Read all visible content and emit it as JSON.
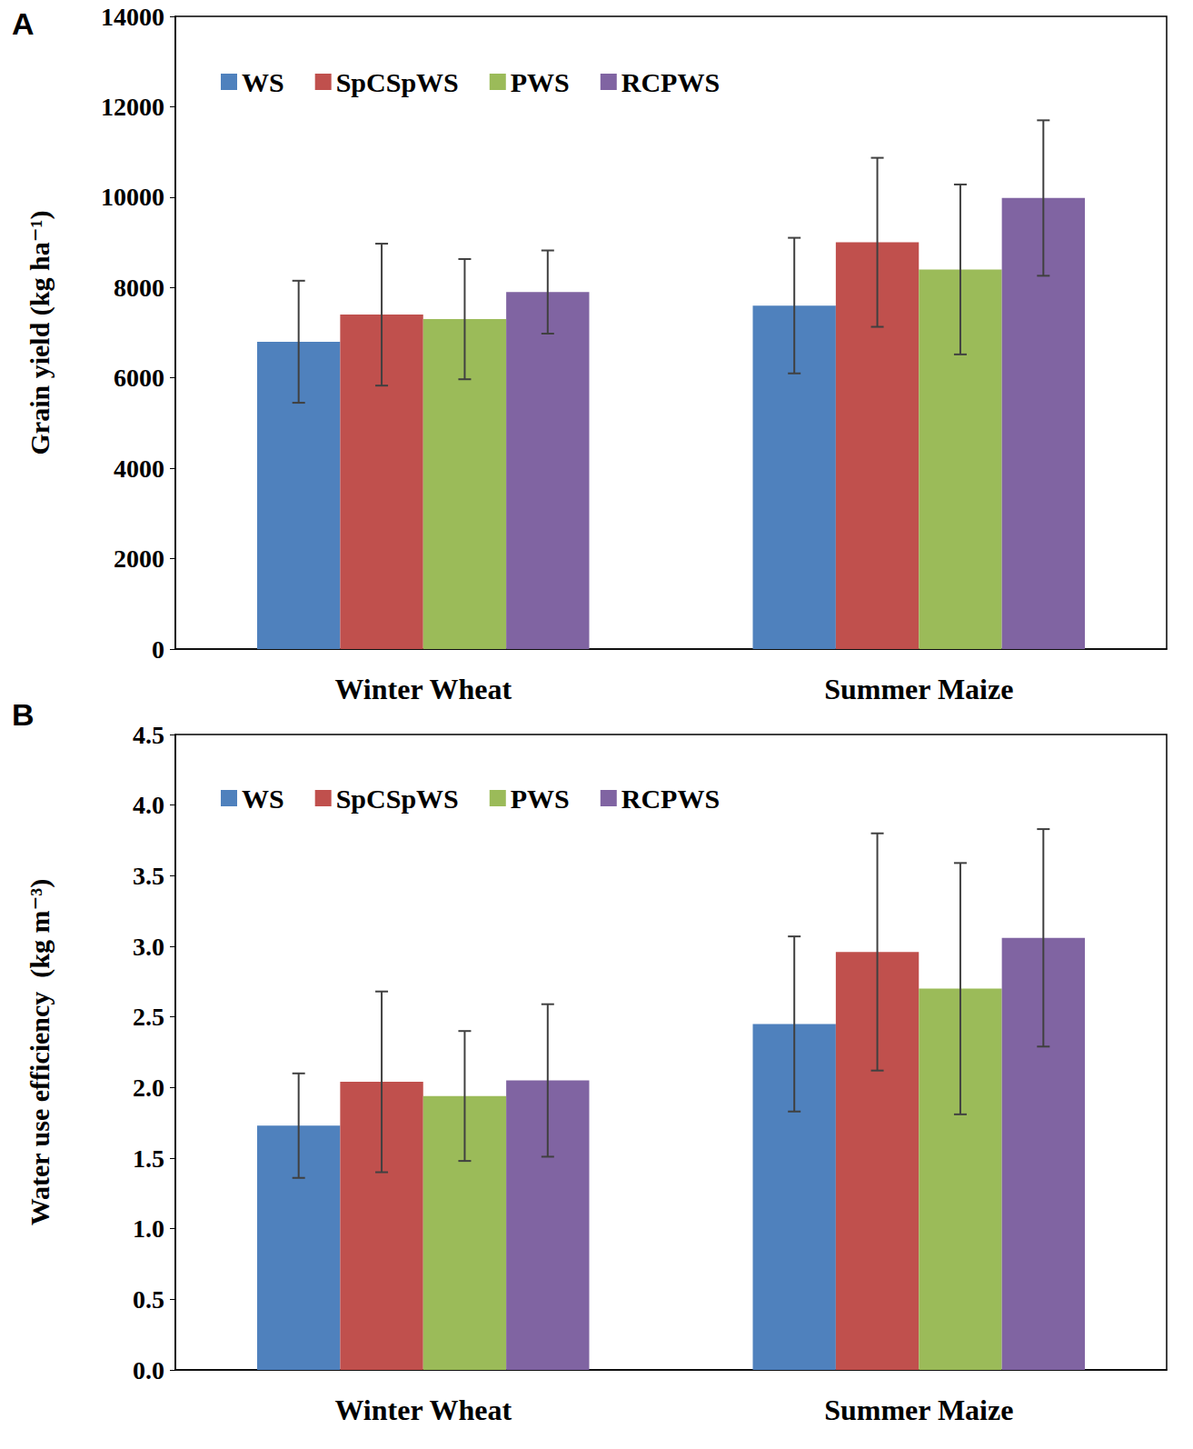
{
  "chart_data": [
    {
      "type": "bar",
      "title": "A",
      "ylabel": "Grain yield (kg ha⁻¹)",
      "categories": [
        "Winter Wheat",
        "Summer Maize"
      ],
      "series": [
        {
          "name": "WS",
          "color": "#4F81BD",
          "values": [
            6800,
            7600
          ],
          "errors": [
            1350,
            1500
          ]
        },
        {
          "name": "SpCSpWS",
          "color": "#C0504D",
          "values": [
            7400,
            9000
          ],
          "errors": [
            1570,
            1870
          ]
        },
        {
          "name": "PWS",
          "color": "#9BBB59",
          "values": [
            7300,
            8400
          ],
          "errors": [
            1330,
            1880
          ]
        },
        {
          "name": "RCPWS",
          "color": "#8064A2",
          "values": [
            7900,
            9980
          ],
          "errors": [
            920,
            1720
          ]
        }
      ],
      "ylim": [
        0,
        14000
      ],
      "yticks": [
        0,
        2000,
        4000,
        6000,
        8000,
        10000,
        12000,
        14000
      ],
      "grid": false,
      "legend": "upper left"
    },
    {
      "type": "bar",
      "title": "B",
      "ylabel": "Water use efficiency  (kg m⁻³)",
      "categories": [
        "Winter Wheat",
        "Summer Maize"
      ],
      "series": [
        {
          "name": "WS",
          "color": "#4F81BD",
          "values": [
            1.73,
            2.45
          ],
          "errors": [
            0.37,
            0.62
          ]
        },
        {
          "name": "SpCSpWS",
          "color": "#C0504D",
          "values": [
            2.04,
            2.96
          ],
          "errors": [
            0.64,
            0.84
          ]
        },
        {
          "name": "PWS",
          "color": "#9BBB59",
          "values": [
            1.94,
            2.7
          ],
          "errors": [
            0.46,
            0.89
          ]
        },
        {
          "name": "RCPWS",
          "color": "#8064A2",
          "values": [
            2.05,
            3.06
          ],
          "errors": [
            0.54,
            0.77
          ]
        }
      ],
      "ylim": [
        0,
        4.5
      ],
      "yticks": [
        {
          "value": 0,
          "label": "0.0"
        },
        0.5,
        {
          "value": 1,
          "label": "1.0"
        },
        1.5,
        {
          "value": 2,
          "label": "2.0"
        },
        2.5,
        {
          "value": 3,
          "label": "3.0"
        },
        3.5,
        {
          "value": 4,
          "label": "4.0"
        },
        4.5
      ],
      "grid": false,
      "legend": "upper left"
    }
  ]
}
